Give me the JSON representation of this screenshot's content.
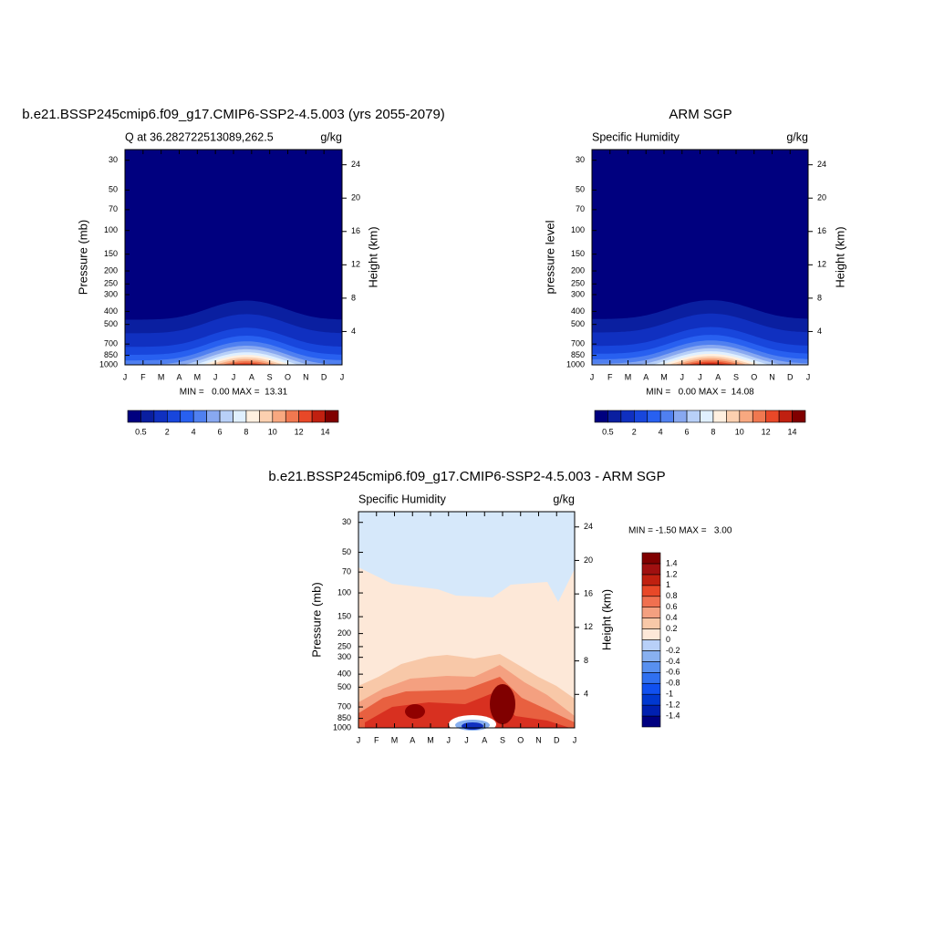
{
  "chart_data": [
    {
      "type": "contour",
      "title": "b.e21.BSSP245cmip6.f09_g17.CMIP6-SSP2-4.5.003 (yrs 2055-2079)",
      "subtitle_left": "Q at 36.282722513089,262.5",
      "subtitle_right": "g/kg",
      "ylabel": "Pressure (mb)",
      "y2label": "Height (km)",
      "categories": [
        "J",
        "F",
        "M",
        "A",
        "M",
        "J",
        "J",
        "A",
        "S",
        "O",
        "N",
        "D",
        "J"
      ],
      "ylim": [
        1000,
        25
      ],
      "log_y": true,
      "yticks": [
        30,
        50,
        70,
        100,
        150,
        200,
        250,
        300,
        400,
        500,
        700,
        850,
        1000
      ],
      "y2lim": [
        0,
        25.8
      ],
      "y2ticks": [
        4,
        8,
        12,
        16,
        20,
        24
      ],
      "stats": "MIN =   0.00 MAX =  13.31",
      "colorbar": {
        "orientation": "horizontal",
        "levels": [
          0.5,
          1,
          2,
          3,
          4,
          5,
          6,
          7,
          8,
          9,
          10,
          11,
          12,
          13,
          14
        ],
        "ticks": [
          0.5,
          2,
          4,
          6,
          8,
          10,
          12,
          14
        ],
        "colors": [
          "#00007f",
          "#0a1fa0",
          "#1030c0",
          "#1846dc",
          "#2860f0",
          "#5080f0",
          "#88a8f0",
          "#b8d0f8",
          "#e0f0ff",
          "#fff0e0",
          "#fcd0b0",
          "#f8a880",
          "#f07850",
          "#e84828",
          "#c02010",
          "#800000"
        ]
      }
    },
    {
      "type": "contour",
      "title": "ARM SGP",
      "subtitle_left": "Specific Humidity",
      "subtitle_right": "g/kg",
      "ylabel": "pressure level",
      "y2label": "Height (km)",
      "categories": [
        "J",
        "F",
        "M",
        "A",
        "M",
        "J",
        "J",
        "A",
        "S",
        "O",
        "N",
        "D",
        "J"
      ],
      "ylim": [
        1000,
        25
      ],
      "log_y": true,
      "yticks": [
        30,
        50,
        70,
        100,
        150,
        200,
        250,
        300,
        400,
        500,
        700,
        850,
        1000
      ],
      "y2lim": [
        0,
        25.8
      ],
      "y2ticks": [
        4,
        8,
        12,
        16,
        20,
        24
      ],
      "stats": "MIN =   0.00 MAX =  14.08",
      "colorbar": {
        "orientation": "horizontal",
        "levels": [
          0.5,
          1,
          2,
          3,
          4,
          5,
          6,
          7,
          8,
          9,
          10,
          11,
          12,
          13,
          14
        ],
        "ticks": [
          0.5,
          2,
          4,
          6,
          8,
          10,
          12,
          14
        ],
        "colors": [
          "#00007f",
          "#0a1fa0",
          "#1030c0",
          "#1846dc",
          "#2860f0",
          "#5080f0",
          "#88a8f0",
          "#b8d0f8",
          "#e0f0ff",
          "#fff0e0",
          "#fcd0b0",
          "#f8a880",
          "#f07850",
          "#e84828",
          "#c02010",
          "#800000"
        ]
      }
    },
    {
      "type": "contour-diff",
      "title": "b.e21.BSSP245cmip6.f09_g17.CMIP6-SSP2-4.5.003 - ARM SGP",
      "subtitle_left": "Specific Humidity",
      "subtitle_right": "g/kg",
      "ylabel": "Pressure (mb)",
      "y2label": "Height (km)",
      "categories": [
        "J",
        "F",
        "M",
        "A",
        "M",
        "J",
        "J",
        "A",
        "S",
        "O",
        "N",
        "D",
        "J"
      ],
      "ylim": [
        1000,
        25
      ],
      "log_y": true,
      "yticks": [
        30,
        50,
        70,
        100,
        150,
        200,
        250,
        300,
        400,
        500,
        700,
        850,
        1000
      ],
      "y2lim": [
        0,
        25.8
      ],
      "y2ticks": [
        4,
        8,
        12,
        16,
        20,
        24
      ],
      "stats": "MIN = -1.50 MAX =   3.00",
      "colorbar": {
        "orientation": "vertical",
        "levels": [
          -1.4,
          -1.2,
          -1,
          -0.8,
          -0.6,
          -0.4,
          -0.2,
          0,
          0.2,
          0.4,
          0.6,
          0.8,
          1,
          1.2,
          1.4
        ],
        "ticks": [
          -1.4,
          -1.2,
          -1,
          -0.8,
          -0.6,
          -0.4,
          -0.2,
          0,
          0.2,
          0.4,
          0.6,
          0.8,
          1,
          1.2,
          1.4
        ],
        "colors": [
          "#000080",
          "#0020b0",
          "#0038d0",
          "#1050f0",
          "#3070f0",
          "#5890f0",
          "#88b0f0",
          "#b8d0f8",
          "#fde8d8",
          "#f8c8a8",
          "#f4a080",
          "#f07050",
          "#e84828",
          "#c02010",
          "#a01010",
          "#800000"
        ]
      }
    }
  ]
}
